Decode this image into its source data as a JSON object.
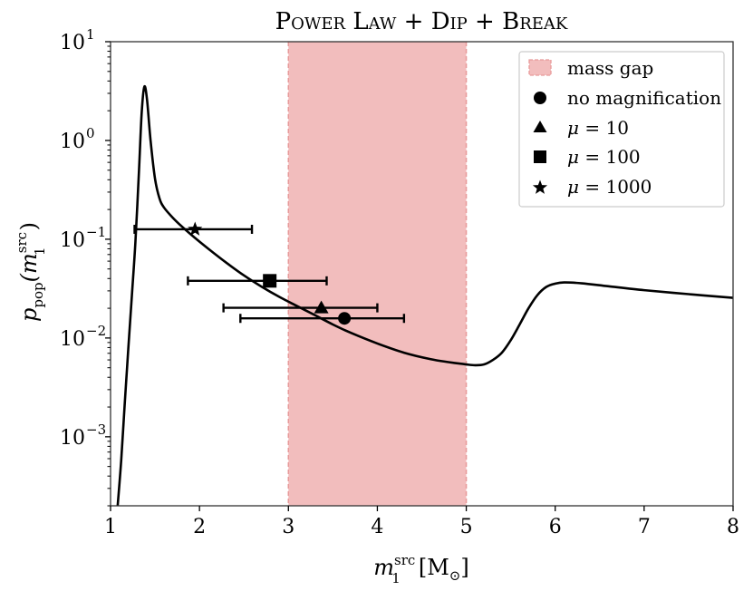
{
  "chart_data": {
    "type": "line",
    "title": "Power Law + Dip + Break",
    "xlabel": {
      "base": "m",
      "sub": "1",
      "sup": "src",
      "unit_open": "[M",
      "unit_sub": "⊙",
      "unit_close": "]"
    },
    "ylabel": {
      "base": "p",
      "sub": "pop",
      "arg_open": "(m",
      "arg_sup": "src",
      "arg_sub": "1",
      "arg_close": ")"
    },
    "x_scale": "linear",
    "y_scale": "log",
    "xlim": [
      1,
      8
    ],
    "ylim": [
      0.0002,
      10
    ],
    "x_ticks": [
      "1",
      "2",
      "3",
      "4",
      "5",
      "6",
      "7",
      "8"
    ],
    "y_ticks": [
      {
        "value": 0.001,
        "base": "10",
        "exp": "−3"
      },
      {
        "value": 0.01,
        "base": "10",
        "exp": "−2"
      },
      {
        "value": 0.1,
        "base": "10",
        "exp": "−1"
      },
      {
        "value": 1,
        "base": "10",
        "exp": "0"
      },
      {
        "value": 10,
        "base": "10",
        "exp": "1"
      }
    ],
    "shaded_region": {
      "label": "mass gap",
      "x_range": [
        3,
        5
      ],
      "color": "#f2bdbd",
      "edge_color": "#e89a9a"
    },
    "curve": {
      "color": "#000000",
      "x": [
        1.08,
        1.12,
        1.16,
        1.2,
        1.24,
        1.28,
        1.32,
        1.35,
        1.38,
        1.41,
        1.45,
        1.5,
        1.55,
        1.6,
        1.7,
        1.8,
        1.95,
        2.1,
        2.3,
        2.5,
        2.7,
        2.9,
        3.1,
        3.3,
        3.5,
        3.7,
        4.0,
        4.3,
        4.6,
        4.8,
        5.0,
        5.1,
        5.2,
        5.3,
        5.4,
        5.5,
        5.6,
        5.7,
        5.8,
        5.9,
        6.0,
        6.1,
        6.3,
        6.6,
        7.0,
        7.5,
        8.0
      ],
      "y": [
        0.0002,
        0.00058,
        0.0022,
        0.0079,
        0.027,
        0.095,
        0.5,
        1.9,
        3.5,
        2.6,
        1.0,
        0.41,
        0.26,
        0.21,
        0.165,
        0.135,
        0.103,
        0.08,
        0.058,
        0.043,
        0.033,
        0.026,
        0.021,
        0.017,
        0.0137,
        0.0113,
        0.0088,
        0.0071,
        0.0061,
        0.0057,
        0.0054,
        0.0053,
        0.0054,
        0.006,
        0.0071,
        0.0095,
        0.0137,
        0.02,
        0.0272,
        0.0329,
        0.0355,
        0.0365,
        0.0358,
        0.0334,
        0.0305,
        0.0278,
        0.0255
      ]
    },
    "series": [
      {
        "label": "no magnification",
        "marker": "circle",
        "x": 3.63,
        "y": 0.0158,
        "xerr_low": 2.46,
        "xerr_high": 4.3
      },
      {
        "label": "μ = 10",
        "marker": "triangle",
        "x": 3.37,
        "y": 0.0202,
        "xerr_low": 2.27,
        "xerr_high": 4.0
      },
      {
        "label": "μ = 100",
        "marker": "square",
        "x": 2.79,
        "y": 0.0379,
        "xerr_low": 1.87,
        "xerr_high": 3.43
      },
      {
        "label": "μ = 1000",
        "marker": "star",
        "x": 1.95,
        "y": 0.126,
        "xerr_low": 1.27,
        "xerr_high": 2.59
      }
    ],
    "legend": {
      "position": "top-right",
      "entries": [
        {
          "label": "mass gap",
          "prefix": "",
          "value": ""
        },
        {
          "label": "no magnification",
          "prefix": "",
          "value": ""
        },
        {
          "label": "",
          "prefix": "μ",
          "value": " = 10"
        },
        {
          "label": "",
          "prefix": "μ",
          "value": " = 100"
        },
        {
          "label": "",
          "prefix": "μ",
          "value": " = 1000"
        }
      ]
    },
    "grid": false
  }
}
